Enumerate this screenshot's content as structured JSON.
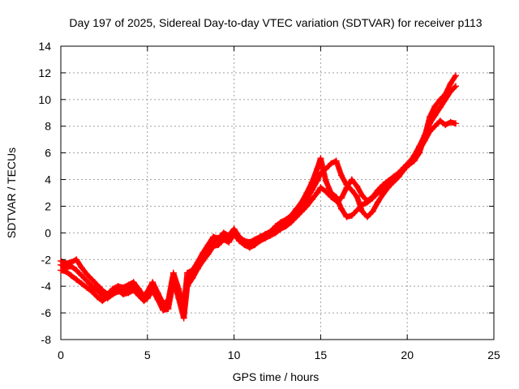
{
  "chart_data": {
    "type": "scatter",
    "title": "Day 197 of 2025, Sidereal Day-to-day VTEC variation (SDTVAR) for receiver p113",
    "xlabel": "GPS time / hours",
    "ylabel": "SDTVAR / TECUs",
    "xlim": [
      0,
      25
    ],
    "ylim": [
      -8,
      14
    ],
    "xticks": [
      0,
      5,
      10,
      15,
      20,
      25
    ],
    "yticks": [
      -8,
      -6,
      -4,
      -2,
      0,
      2,
      4,
      6,
      8,
      10,
      12,
      14
    ],
    "grid": true,
    "marker": "plus",
    "series_color": "#ff0000",
    "series": [
      {
        "x": [
          0.0,
          0.3,
          0.6,
          0.9,
          1.2,
          1.5,
          1.8,
          2.1,
          2.4,
          2.7,
          3.0,
          3.3,
          3.6,
          3.9,
          4.2,
          4.5,
          4.8,
          5.0,
          5.3,
          5.6,
          5.9,
          6.2,
          6.5,
          6.8,
          7.1,
          7.3,
          7.6,
          7.9,
          8.2,
          8.5,
          8.8,
          9.1,
          9.4,
          9.7,
          10.0,
          10.3,
          10.6,
          10.9,
          11.2,
          11.5,
          11.8,
          12.1,
          12.4,
          12.7,
          13.0,
          13.3,
          13.6,
          13.9,
          14.2,
          14.5,
          14.8,
          15.0,
          15.3,
          15.6,
          15.9,
          16.2,
          16.5,
          16.8,
          17.1,
          17.4,
          17.7,
          18.0,
          18.3,
          18.6,
          18.9,
          19.2,
          19.5,
          19.8,
          20.1,
          20.4,
          20.7,
          21.0,
          21.3,
          21.6,
          21.9,
          22.2,
          22.5,
          22.8
        ],
        "y": [
          -2.1,
          -2.3,
          -2.2,
          -2.0,
          -2.6,
          -3.1,
          -3.5,
          -3.9,
          -4.3,
          -4.6,
          -4.2,
          -4.0,
          -4.1,
          -3.9,
          -3.7,
          -4.2,
          -4.8,
          -4.4,
          -3.7,
          -4.5,
          -5.3,
          -5.1,
          -3.0,
          -4.2,
          -5.6,
          -3.0,
          -2.8,
          -2.2,
          -1.5,
          -0.9,
          -0.3,
          -0.4,
          0.0,
          -0.2,
          0.3,
          -0.3,
          -0.6,
          -0.7,
          -0.5,
          -0.3,
          -0.1,
          0.1,
          0.5,
          0.8,
          1.0,
          1.3,
          1.8,
          2.3,
          3.0,
          3.8,
          4.8,
          5.6,
          3.9,
          3.0,
          2.7,
          1.8,
          1.2,
          1.3,
          1.7,
          2.1,
          2.3,
          2.6,
          3.0,
          3.2,
          3.5,
          3.8,
          4.2,
          4.7,
          5.2,
          5.8,
          6.5,
          7.3,
          8.2,
          8.8,
          9.4,
          10.0,
          10.6,
          11.0
        ]
      },
      {
        "x": [
          0.0,
          0.3,
          0.6,
          0.9,
          1.2,
          1.5,
          1.8,
          2.1,
          2.4,
          2.7,
          3.0,
          3.3,
          3.6,
          3.9,
          4.2,
          4.5,
          4.8,
          5.0,
          5.3,
          5.6,
          5.9,
          6.2,
          6.5,
          6.8,
          7.1,
          7.3,
          7.6,
          7.9,
          8.2,
          8.5,
          8.8,
          9.1,
          9.4,
          9.7,
          10.0,
          10.3,
          10.6,
          10.9,
          11.2,
          11.5,
          11.8,
          12.1,
          12.4,
          12.7,
          13.0,
          13.3,
          13.6,
          13.9,
          14.2,
          14.5,
          14.8,
          15.0,
          15.3,
          15.6,
          15.9,
          16.2,
          16.5,
          16.8,
          17.1,
          17.4,
          17.7,
          18.0,
          18.3,
          18.6,
          18.9,
          19.2,
          19.5,
          19.8,
          20.1,
          20.4,
          20.7,
          21.0,
          21.3,
          21.6,
          21.9,
          22.2,
          22.5,
          22.8
        ],
        "y": [
          -2.8,
          -2.9,
          -3.2,
          -3.5,
          -3.8,
          -4.1,
          -4.4,
          -4.8,
          -5.1,
          -4.8,
          -4.4,
          -4.3,
          -4.6,
          -4.5,
          -4.3,
          -4.7,
          -5.1,
          -4.9,
          -4.3,
          -5.0,
          -5.8,
          -5.7,
          -3.6,
          -4.9,
          -6.4,
          -4.0,
          -3.4,
          -2.7,
          -2.1,
          -1.6,
          -1.0,
          -0.9,
          -0.5,
          -0.7,
          -0.1,
          -0.6,
          -0.9,
          -1.1,
          -0.9,
          -0.6,
          -0.4,
          -0.2,
          0.0,
          0.3,
          0.5,
          0.8,
          1.2,
          1.6,
          2.0,
          2.5,
          3.0,
          3.4,
          3.1,
          2.7,
          2.4,
          2.6,
          3.4,
          4.0,
          3.5,
          2.8,
          2.4,
          2.7,
          3.2,
          3.6,
          3.9,
          4.2,
          4.5,
          4.9,
          5.3,
          5.7,
          6.2,
          6.9,
          7.6,
          8.0,
          8.4,
          8.1,
          8.3,
          8.2
        ]
      },
      {
        "x": [
          0.0,
          0.3,
          0.6,
          0.9,
          1.2,
          1.5,
          1.8,
          2.1,
          2.4,
          2.7,
          3.0,
          3.3,
          3.6,
          3.9,
          4.2,
          4.5,
          4.8,
          5.0,
          5.3,
          5.6,
          5.9,
          6.2,
          6.5,
          6.8,
          7.1,
          7.3,
          7.6,
          7.9,
          8.2,
          8.5,
          8.8,
          9.1,
          9.4,
          9.7,
          10.0,
          10.3,
          10.6,
          10.9,
          11.2,
          11.5,
          11.8,
          12.1,
          12.4,
          12.7,
          13.0,
          13.3,
          13.6,
          13.9,
          14.2,
          14.5,
          14.8,
          15.0,
          15.3,
          15.6,
          15.9,
          16.2,
          16.5,
          16.8,
          17.1,
          17.4,
          17.7,
          18.0,
          18.3,
          18.6,
          18.9,
          19.2,
          19.5,
          19.8,
          20.1,
          20.4,
          20.7,
          21.0,
          21.3,
          21.6,
          21.9,
          22.2,
          22.5,
          22.8
        ],
        "y": [
          -2.4,
          -2.6,
          -2.5,
          -2.8,
          -3.2,
          -3.6,
          -4.0,
          -4.3,
          -4.7,
          -4.9,
          -4.6,
          -4.4,
          -4.4,
          -4.2,
          -4.0,
          -4.5,
          -5.0,
          -4.6,
          -4.0,
          -4.9,
          -5.6,
          -5.4,
          -3.3,
          -4.6,
          -6.0,
          -3.5,
          -3.1,
          -2.5,
          -1.8,
          -1.2,
          -0.6,
          -0.6,
          -0.2,
          -0.4,
          0.1,
          -0.4,
          -0.7,
          -0.9,
          -0.7,
          -0.4,
          -0.2,
          -0.1,
          0.2,
          0.6,
          0.8,
          1.0,
          1.5,
          2.0,
          2.5,
          3.2,
          3.9,
          4.5,
          4.8,
          5.2,
          5.4,
          4.3,
          3.6,
          3.2,
          2.7,
          1.6,
          1.2,
          1.6,
          2.3,
          2.9,
          3.4,
          3.9,
          4.4,
          4.9,
          5.1,
          5.4,
          6.0,
          7.2,
          8.7,
          9.5,
          10.0,
          10.4,
          11.2,
          11.8
        ]
      }
    ]
  }
}
